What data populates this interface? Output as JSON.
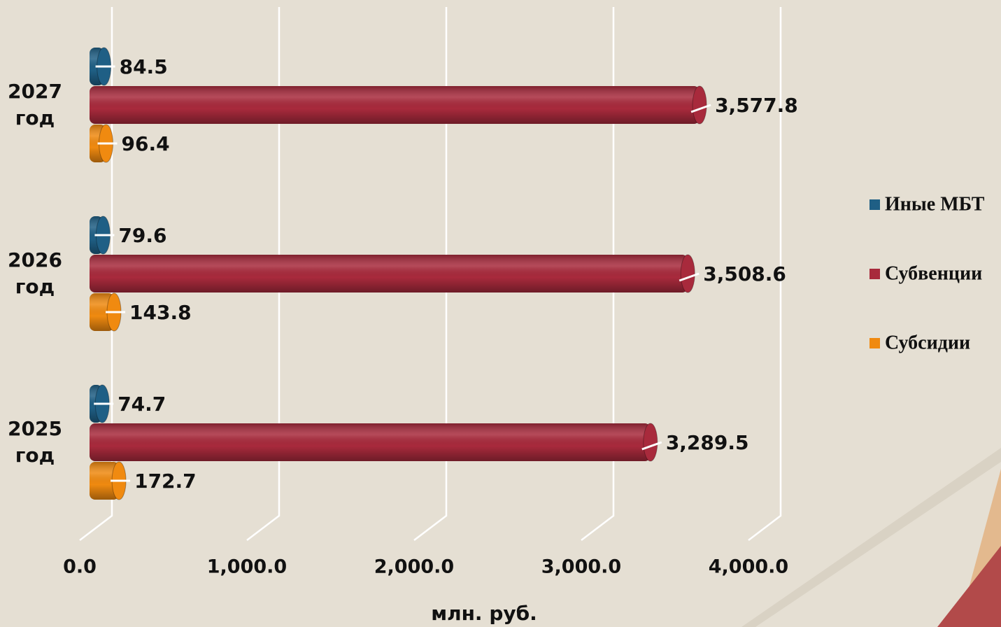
{
  "chart_data": {
    "type": "bar",
    "orientation": "horizontal",
    "style": "3d-cylinder",
    "x_label": "млн. руб.",
    "categories": [
      "2027 год",
      "2026 год",
      "2025 год"
    ],
    "series": [
      {
        "name": "Иные МБТ",
        "color": "#1f5f85",
        "values": [
          84.5,
          79.6,
          74.7
        ]
      },
      {
        "name": "Субвенции",
        "color": "#a82a3c",
        "values": [
          3577.8,
          3508.6,
          3289.5
        ],
        "value_labels": [
          "3,577.8",
          "3,508.6",
          "3,289.5"
        ]
      },
      {
        "name": "Субсидии",
        "color": "#f08a10",
        "values": [
          96.4,
          143.8,
          172.7
        ]
      }
    ],
    "xlim": [
      0,
      4000
    ],
    "xticks": [
      {
        "value": 0,
        "label": "0.0"
      },
      {
        "value": 1000,
        "label": "1,000.0"
      },
      {
        "value": 2000,
        "label": "2,000.0"
      },
      {
        "value": 3000,
        "label": "3,000.0"
      },
      {
        "value": 4000,
        "label": "4,000.0"
      }
    ],
    "grid": true,
    "legend": "right"
  }
}
